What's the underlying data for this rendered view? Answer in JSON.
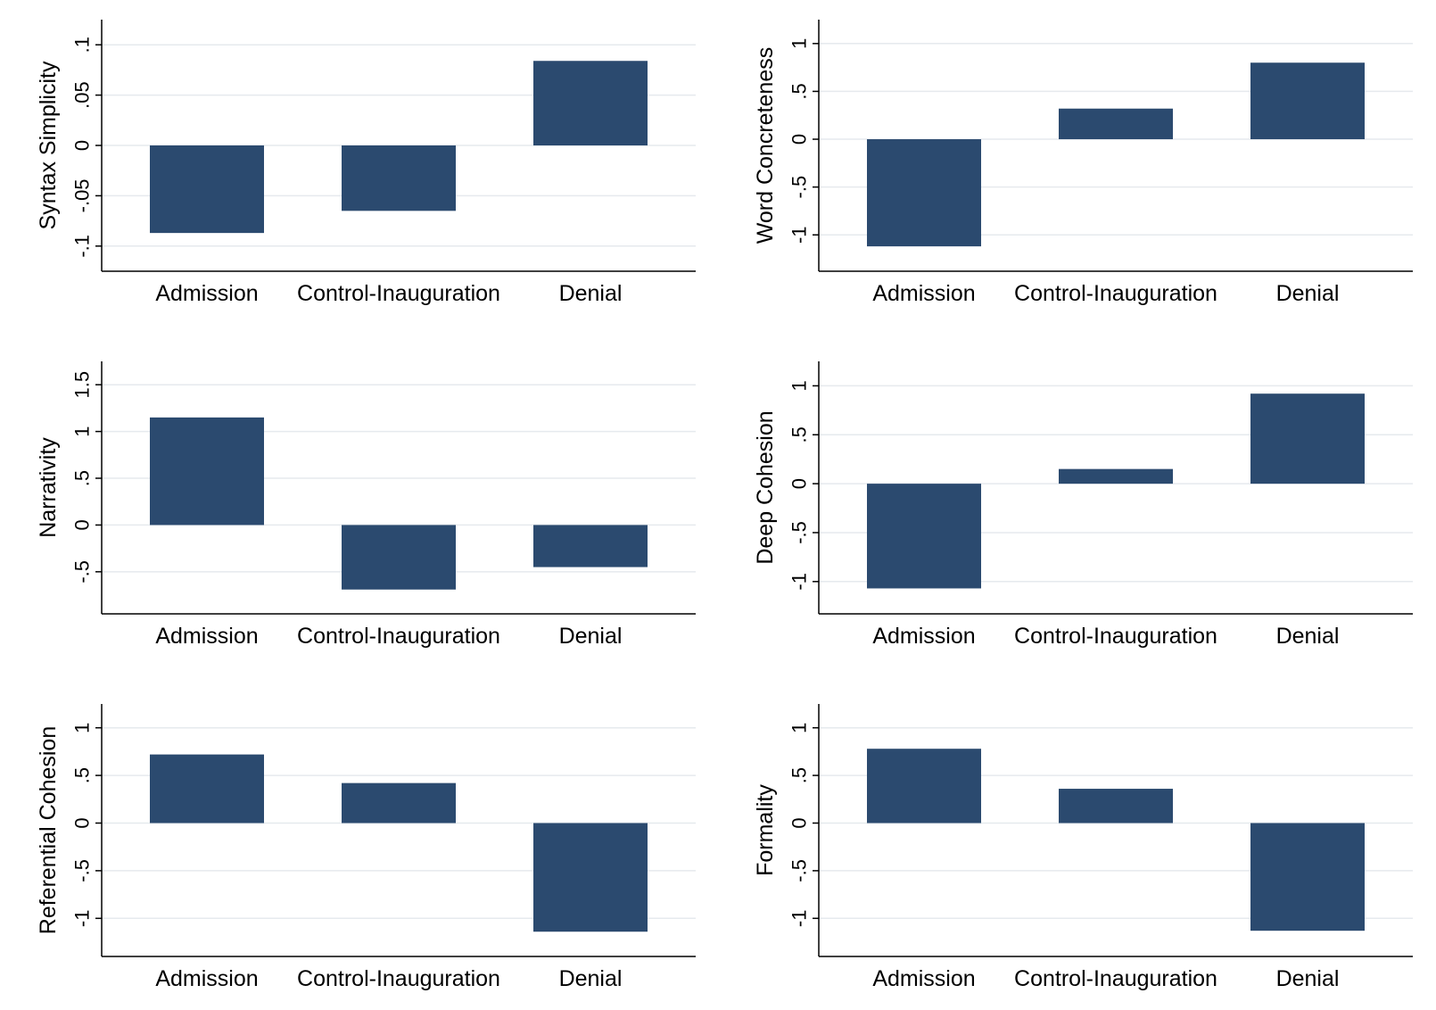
{
  "chart_data": [
    {
      "type": "bar",
      "categories": [
        "Admission",
        "Control-Inauguration",
        "Denial"
      ],
      "values": [
        -0.087,
        -0.065,
        0.084
      ],
      "ylabel": "Syntax Simplicity",
      "ylim": [
        -0.125,
        0.125
      ],
      "yticks": [
        -0.1,
        -0.05,
        0,
        0.05,
        0.1
      ],
      "ytick_labels": [
        "-.1",
        "-.05",
        "0",
        ".05",
        ".1"
      ],
      "grid": true,
      "bar_color": "#2b4a6f"
    },
    {
      "type": "bar",
      "categories": [
        "Admission",
        "Control-Inauguration",
        "Denial"
      ],
      "values": [
        -1.12,
        0.32,
        0.8
      ],
      "ylabel": "Word Concreteness",
      "ylim": [
        -1.38,
        1.25
      ],
      "yticks": [
        -1,
        -0.5,
        0,
        0.5,
        1
      ],
      "ytick_labels": [
        "-1",
        "-.5",
        "0",
        ".5",
        "1"
      ],
      "grid": true,
      "bar_color": "#2b4a6f"
    },
    {
      "type": "bar",
      "categories": [
        "Admission",
        "Control-Inauguration",
        "Denial"
      ],
      "values": [
        1.15,
        -0.69,
        -0.45
      ],
      "ylabel": "Narrativity",
      "ylim": [
        -0.95,
        1.75
      ],
      "yticks": [
        -0.5,
        0,
        0.5,
        1,
        1.5
      ],
      "ytick_labels": [
        "-.5",
        "0",
        ".5",
        "1",
        "1.5"
      ],
      "grid": true,
      "bar_color": "#2b4a6f"
    },
    {
      "type": "bar",
      "categories": [
        "Admission",
        "Control-Inauguration",
        "Denial"
      ],
      "values": [
        -1.07,
        0.15,
        0.92
      ],
      "ylabel": "Deep Cohesion",
      "ylim": [
        -1.33,
        1.25
      ],
      "yticks": [
        -1,
        -0.5,
        0,
        0.5,
        1
      ],
      "ytick_labels": [
        "-1",
        "-.5",
        "0",
        ".5",
        "1"
      ],
      "grid": true,
      "bar_color": "#2b4a6f"
    },
    {
      "type": "bar",
      "categories": [
        "Admission",
        "Control-Inauguration",
        "Denial"
      ],
      "values": [
        0.72,
        0.42,
        -1.14
      ],
      "ylabel": "Referential Cohesion",
      "ylim": [
        -1.4,
        1.25
      ],
      "yticks": [
        -1,
        -0.5,
        0,
        0.5,
        1
      ],
      "ytick_labels": [
        "-1",
        "-.5",
        "0",
        ".5",
        "1"
      ],
      "grid": true,
      "bar_color": "#2b4a6f"
    },
    {
      "type": "bar",
      "categories": [
        "Admission",
        "Control-Inauguration",
        "Denial"
      ],
      "values": [
        0.78,
        0.36,
        -1.13
      ],
      "ylabel": "Formality",
      "ylim": [
        -1.4,
        1.25
      ],
      "yticks": [
        -1,
        -0.5,
        0,
        0.5,
        1
      ],
      "ytick_labels": [
        "-1",
        "-.5",
        "0",
        ".5",
        "1"
      ],
      "grid": true,
      "bar_color": "#2b4a6f"
    }
  ]
}
